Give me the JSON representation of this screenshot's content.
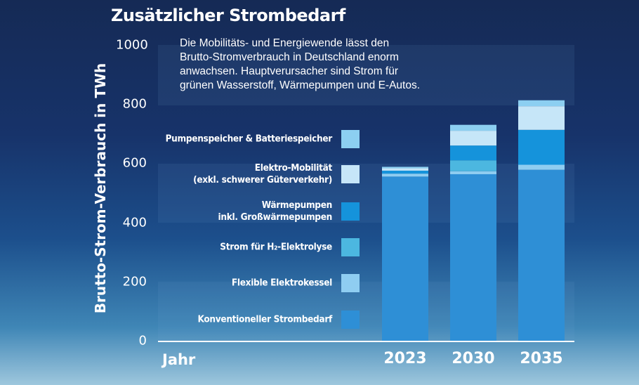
{
  "chart_data": {
    "type": "bar",
    "stacked": true,
    "title": "Zusätzlicher Strombedarf",
    "subtitle": "Die Mobilitäts- und Energiewende lässt den Brutto-Stromverbrauch in Deutschland enorm anwachsen. Hauptverursacher sind Strom für grünen Wasserstoff, Wärmepumpen und E-Autos.",
    "subtitle_lines": [
      "Die Mobilitäts- und Energiewende lässt den",
      "Brutto-Stromverbrauch in Deutschland enorm",
      "anwachsen. Hauptverursacher sind Strom für",
      "grünen Wasserstoff, Wärmepumpen und E-Autos."
    ],
    "ylabel": "Brutto-Strom-Verbrauch in TWh",
    "xlabel": "Jahr",
    "ylim": [
      0,
      1000
    ],
    "yticks": [
      "0",
      "200",
      "400",
      "600",
      "800",
      "1000"
    ],
    "ytick_values": [
      0,
      200,
      400,
      600,
      800,
      1000
    ],
    "categories": [
      "2023",
      "2030",
      "2035"
    ],
    "series": [
      {
        "name": "Konventioneller Strombedarf",
        "legend_lines": [
          "Konventioneller Strombedarf"
        ],
        "color": "#2e8fd6",
        "values": [
          555,
          563,
          578
        ]
      },
      {
        "name": "Flexible Elektrokessel",
        "legend_lines": [
          "Flexible Elektrokessel"
        ],
        "color": "#8fcdf1",
        "values": [
          10,
          10,
          17
        ]
      },
      {
        "name": "Strom für H2-Elektrolyse",
        "legend_lines": [
          "Strom für H₂-Elektrolyse"
        ],
        "color": "#4cb7e0",
        "values": [
          0,
          37,
          0
        ]
      },
      {
        "name": "Wärmepumpen inkl. Großwärmepumpen",
        "legend_lines": [
          "Wärmepumpen",
          "inkl. Großwärmepumpen"
        ],
        "color": "#1593db",
        "values": [
          10,
          50,
          118
        ]
      },
      {
        "name": "Elektro-Mobilität (exkl. schwerer Güterverkehr)",
        "legend_lines": [
          "Elektro-Mobilität",
          "(exkl. schwerer Güterverkehr)"
        ],
        "color": "#c6e6f8",
        "values": [
          8,
          50,
          80
        ]
      },
      {
        "name": "Pumpenspeicher & Batteriespeicher",
        "legend_lines": [
          "Pumpenspeicher & Batteriespeicher"
        ],
        "color": "#8ccff1",
        "values": [
          5,
          20,
          20
        ]
      }
    ],
    "legend_order_top_to_bottom": [
      5,
      4,
      3,
      2,
      1,
      0
    ],
    "legend_placement": "left-inside",
    "grid": false
  }
}
